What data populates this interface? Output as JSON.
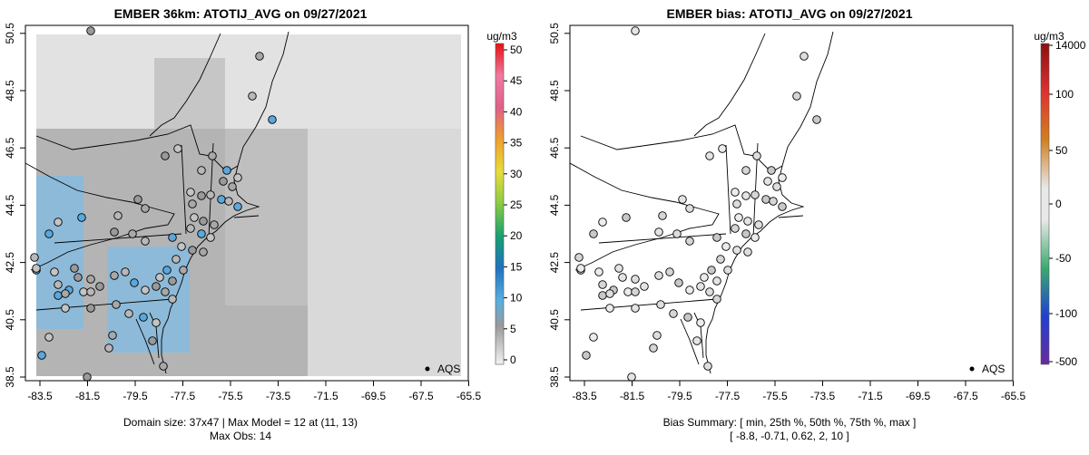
{
  "left": {
    "title": "EMBER 36km: ATOTIJ_AVG on 09/27/2021",
    "unit": "ug/m3",
    "legend_label": "AQS",
    "caption_line1": "Domain size: 37x47 | Max Model = 12 at (11, 13)",
    "caption_line2": "Max Obs: 14",
    "colorbar_ticks": [
      "0",
      "5",
      "10",
      "15",
      "20",
      "25",
      "30",
      "35",
      "40",
      "45",
      "50"
    ]
  },
  "right": {
    "title": "EMBER bias: ATOTIJ_AVG on 09/27/2021",
    "unit": "ug/m3",
    "legend_label": "AQS",
    "caption_line1": "Bias Summary: [ min, 25th %, 50th %, 75th %, max ]",
    "caption_line2": "[ -8.8,  -0.71,  0.62,  2,  10 ]",
    "colorbar_ticks": [
      "-500",
      "-100",
      "-50",
      "0",
      "50",
      "100",
      "14000"
    ]
  },
  "axes": {
    "x_ticks": [
      "-83.5",
      "-81.5",
      "-79.5",
      "-77.5",
      "-75.5",
      "-73.5",
      "-71.5",
      "-69.5",
      "-67.5",
      "-65.5"
    ],
    "y_ticks": [
      "38.5",
      "40.5",
      "42.5",
      "44.5",
      "46.5",
      "48.5",
      "50.5"
    ]
  },
  "chart_data": {
    "type": "map",
    "panels": [
      {
        "name": "model",
        "variable": "ATOTIJ_AVG",
        "date": "09/27/2021",
        "domain_size": "37x47",
        "max_model": 12,
        "max_model_cell": [
          11,
          13
        ],
        "max_obs": 14,
        "colorbar_range": [
          0,
          50
        ]
      },
      {
        "name": "bias",
        "variable": "ATOTIJ_AVG",
        "date": "09/27/2021",
        "bias_summary": {
          "min": -8.8,
          "p25": -0.71,
          "p50": 0.62,
          "p75": 2,
          "max": 10
        }
      }
    ],
    "xlim": [
      -84.5,
      -64.9
    ],
    "ylim": [
      38.3,
      50.6
    ],
    "grid": false,
    "legend_position": "bottom-right"
  }
}
